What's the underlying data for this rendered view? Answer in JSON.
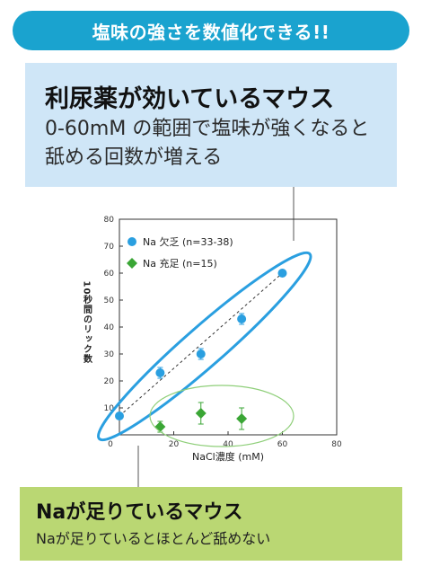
{
  "banner": "塩味の強さを数値化できる!!",
  "top_box": {
    "heading": "利尿薬が効いているマウス",
    "description": "0-60mM の範囲で塩味が強くなると舐める回数が増える"
  },
  "bottom_box": {
    "heading": "Naが足りているマウス",
    "description": "Naが足りているとほとんど舐めない"
  },
  "colors": {
    "banner": "#1aa3cf",
    "top_box": "#cfe6f7",
    "bottom_box": "#bad773",
    "deficient_series": "#2a9fe0",
    "sufficient_series": "#3aa635",
    "blue_ellipse": "#2a9fe0",
    "green_ellipse": "#8fcf7a"
  },
  "chart_data": {
    "type": "scatter",
    "title": "",
    "xlabel": "NaCl濃度 (mM)",
    "ylabel": "10秒間のリック数",
    "xlim": [
      0,
      80
    ],
    "ylim": [
      0,
      80
    ],
    "x_ticks": [
      0,
      20,
      40,
      60,
      80
    ],
    "y_ticks": [
      10,
      20,
      30,
      40,
      50,
      60,
      70,
      80
    ],
    "grid": false,
    "legend_position": "top-left",
    "series": [
      {
        "name": "Na 欠乏 (n=33-38)",
        "marker": "circle",
        "color": "#2a9fe0",
        "x": [
          0,
          15,
          30,
          45,
          60
        ],
        "y": [
          7,
          23,
          30,
          43,
          60
        ],
        "error": [
          0,
          2,
          2,
          2,
          0
        ],
        "trendline": "dashed"
      },
      {
        "name": "Na 充足 (n=15)",
        "marker": "diamond",
        "color": "#3aa635",
        "x": [
          15,
          30,
          45
        ],
        "y": [
          3,
          8,
          6
        ],
        "error": [
          2,
          4,
          4
        ]
      }
    ]
  }
}
